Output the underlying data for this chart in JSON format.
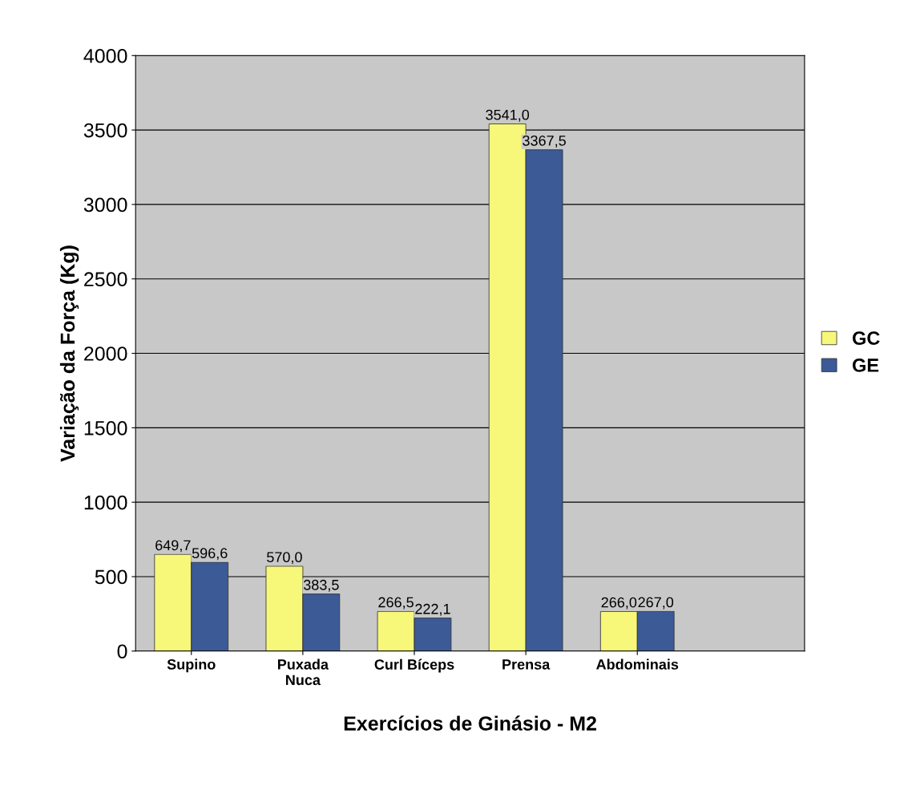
{
  "chart_data": {
    "type": "bar",
    "xlabel": "Exercícios de Ginásio - M2",
    "ylabel": "Variação da Força (Kg)",
    "categories": [
      "Supino",
      "Puxada\nNuca",
      "Curl Bíceps",
      "Prensa",
      "Abdominais"
    ],
    "series": [
      {
        "name": "GC",
        "color": "#f7f77a",
        "values": [
          649.7,
          570.0,
          266.5,
          3541.0,
          266.0
        ],
        "value_labels": [
          "649,7",
          "570,0",
          "266,5",
          "3541,0",
          "266,0"
        ]
      },
      {
        "name": "GE",
        "color": "#3b5a96",
        "values": [
          596.6,
          383.5,
          222.1,
          3367.5,
          267.0
        ],
        "value_labels": [
          "596,6",
          "383,5",
          "222,1",
          "3367,5",
          "267,0"
        ]
      }
    ],
    "ylim": [
      0,
      4000
    ],
    "yticks": [
      0,
      500,
      1000,
      1500,
      2000,
      2500,
      3000,
      3500,
      4000
    ],
    "grid": "y",
    "legend": "right"
  }
}
